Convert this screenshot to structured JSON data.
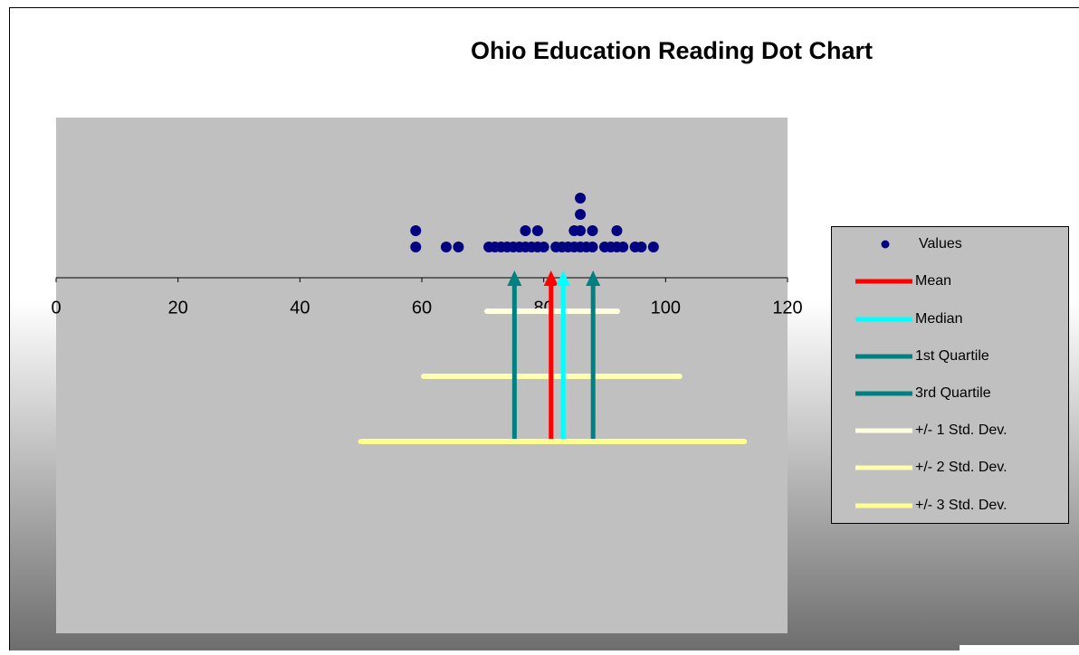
{
  "chart_data": {
    "type": "dot",
    "title": "Ohio Education Reading Dot Chart",
    "xlim": [
      0,
      120
    ],
    "xticks": [
      0,
      20,
      40,
      60,
      80,
      100,
      120
    ],
    "series": [
      {
        "name": "Values",
        "color": "#000080",
        "values": [
          59,
          59,
          64,
          66,
          71,
          72,
          73,
          74,
          75,
          76,
          77,
          77,
          78,
          79,
          79,
          80,
          82,
          83,
          84,
          85,
          85,
          86,
          86,
          86,
          86,
          87,
          88,
          88,
          90,
          91,
          92,
          92,
          93,
          95,
          96,
          98
        ]
      }
    ],
    "markers": [
      {
        "name": "Mean",
        "color": "#ff0000",
        "value": 81.2
      },
      {
        "name": "Median",
        "color": "#00ffff",
        "value": 83.2
      },
      {
        "name": "1st Quartile",
        "color": "#008080",
        "value": 75.2
      },
      {
        "name": "3rd Quartile",
        "color": "#008080",
        "value": 88.1
      }
    ],
    "bands": [
      {
        "name": "+/- 1 Std. Dev.",
        "color": "#ffffe0",
        "values": [
          70.7,
          92.1
        ]
      },
      {
        "name": "+/- 2 Std. Dev.",
        "color": "#ffffb0",
        "values": [
          60.3,
          102.3
        ]
      },
      {
        "name": "+/- 3 Std. Dev.",
        "color": "#ffff90",
        "values": [
          50,
          112.9
        ]
      }
    ]
  }
}
